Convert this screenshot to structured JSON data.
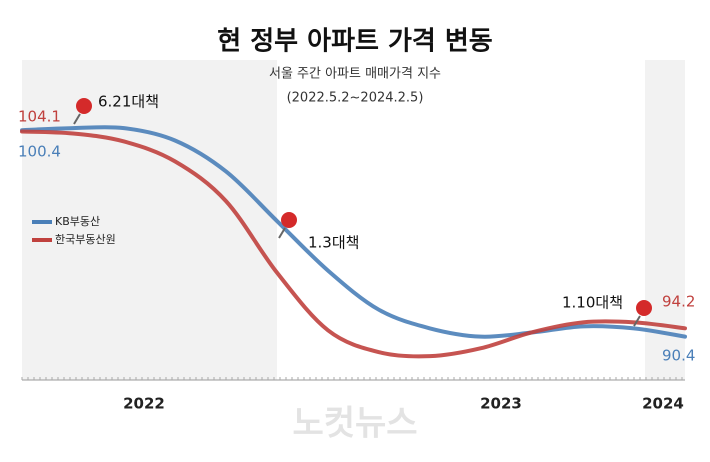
{
  "chart_data": {
    "type": "line",
    "title": "현 정부 아파트 가격 변동",
    "subtitle": "서울 주간 아파트 매매가격 지수",
    "period": "(2022.5.2~2024.2.5)",
    "categories": [
      null,
      null,
      "2022",
      null,
      null,
      null,
      null,
      null,
      null,
      "2023",
      null,
      null,
      null,
      "2024"
    ],
    "series": [
      {
        "name": "KB부동산",
        "color": "#4a7fb8",
        "values": [
          100.4,
          100.5,
          100.5,
          99.9,
          98.4,
          96.0,
          93.6,
          91.7,
          90.8,
          90.4,
          90.6,
          90.9,
          90.8,
          90.4
        ]
      },
      {
        "name": "한국부동산원",
        "color": "#c0413e",
        "axis": "y2",
        "values": [
          104.1,
          104.0,
          103.6,
          102.6,
          100.6,
          97.0,
          94.1,
          93.0,
          92.8,
          93.2,
          94.0,
          94.5,
          94.5,
          94.2
        ]
      }
    ],
    "ylim": [
      88.3,
      103.8
    ],
    "y2lim": [
      91.6,
      107.7
    ],
    "annotations": [
      "6.21대책",
      "1.3대책",
      "1.10대책"
    ],
    "legend": "left",
    "watermark": "노컷뉴스"
  }
}
